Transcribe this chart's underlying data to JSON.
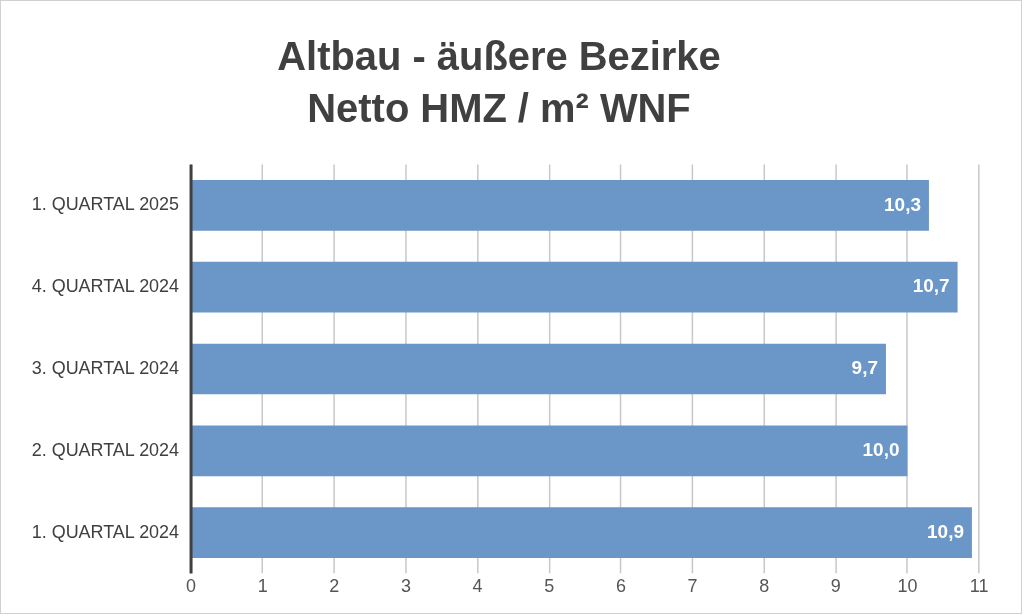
{
  "chart_data": {
    "type": "bar",
    "orientation": "horizontal",
    "title": "Altbau - äußere Bezirke\nNetto HMZ / m² WNF",
    "categories": [
      "1. QUARTAL 2025",
      "4. QUARTAL 2024",
      "3. QUARTAL 2024",
      "2. QUARTAL 2024",
      "1. QUARTAL 2024"
    ],
    "values": [
      10.3,
      10.7,
      9.7,
      10.0,
      10.9
    ],
    "value_labels": [
      "10,3",
      "10,7",
      "9,7",
      "10,0",
      "10,9"
    ],
    "color": "#6a96c8",
    "xlim": [
      0,
      11
    ],
    "xticks": [
      0,
      1,
      2,
      3,
      4,
      5,
      6,
      7,
      8,
      9,
      10,
      11
    ],
    "grid": "x"
  }
}
